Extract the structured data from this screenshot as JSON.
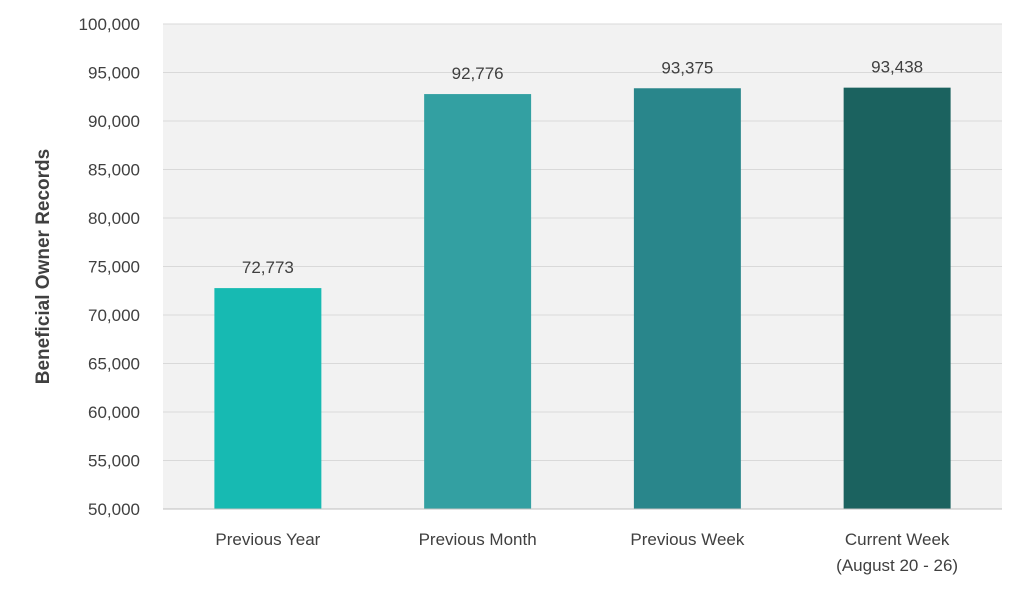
{
  "chart_data": {
    "type": "bar",
    "title": "",
    "xlabel": "",
    "ylabel": "Beneficial Owner Records",
    "categories": [
      [
        "Previous Year"
      ],
      [
        "Previous Month"
      ],
      [
        "Previous Week"
      ],
      [
        "Current Week",
        "(August 20 - 26)"
      ]
    ],
    "values": [
      72773,
      92776,
      93375,
      93438
    ],
    "value_labels": [
      "72,773",
      "92,776",
      "93,375",
      "93,438"
    ],
    "ylim": [
      50000,
      100000
    ],
    "yticks": [
      50000,
      55000,
      60000,
      65000,
      70000,
      75000,
      80000,
      85000,
      90000,
      95000,
      100000
    ],
    "ytick_labels": [
      "50,000",
      "55,000",
      "60,000",
      "65,000",
      "70,000",
      "75,000",
      "80,000",
      "85,000",
      "90,000",
      "95,000",
      "100,000"
    ],
    "grid": true,
    "legend": "none",
    "colors": {
      "bars": [
        "#17bab2",
        "#33a0a2",
        "#29868b",
        "#1b625f"
      ],
      "plot_background": "#f2f2f2",
      "gridline": "#d9d9d9",
      "axis_line": "#bfbfbf",
      "text": "#404040"
    }
  }
}
